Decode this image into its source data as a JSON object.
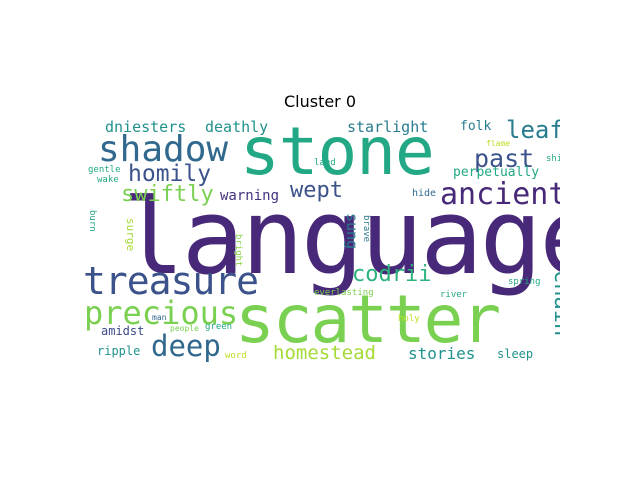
{
  "title": "Cluster 0",
  "words": [
    {
      "text": "language",
      "color": "#482878"
    },
    {
      "text": "stone",
      "color": "#22a884"
    },
    {
      "text": "scatter",
      "color": "#7ad151"
    },
    {
      "text": "treasure",
      "color": "#3b528b"
    },
    {
      "text": "shadow",
      "color": "#31688e"
    },
    {
      "text": "ancient",
      "color": "#482878"
    },
    {
      "text": "precious",
      "color": "#7ad151"
    },
    {
      "text": "past",
      "color": "#3b528b"
    },
    {
      "text": "deep",
      "color": "#31688e"
    },
    {
      "text": "homestead",
      "color": "#a5db36"
    },
    {
      "text": "wept",
      "color": "#3b528b"
    },
    {
      "text": "homily",
      "color": "#3b528b"
    },
    {
      "text": "swiftly",
      "color": "#7ad151"
    },
    {
      "text": "leaf",
      "color": "#287c8e"
    },
    {
      "text": "codrii",
      "color": "#2db27d"
    },
    {
      "text": "chain",
      "color": "#21918c"
    },
    {
      "text": "stories",
      "color": "#21918c"
    },
    {
      "text": "dniesters",
      "color": "#21918c"
    },
    {
      "text": "deathly",
      "color": "#21918c"
    },
    {
      "text": "starlight",
      "color": "#287c8e"
    },
    {
      "text": "sung",
      "color": "#287c8e"
    },
    {
      "text": "warning",
      "color": "#46327e"
    },
    {
      "text": "folk",
      "color": "#287c8e"
    },
    {
      "text": "perpetually",
      "color": "#22a884"
    },
    {
      "text": "sleep",
      "color": "#21918c"
    },
    {
      "text": "amidst",
      "color": "#3e4a89"
    },
    {
      "text": "ripple",
      "color": "#21918c"
    },
    {
      "text": "hide",
      "color": "#31688e"
    },
    {
      "text": "surge",
      "color": "#a5db36"
    },
    {
      "text": "brave",
      "color": "#2a788e"
    },
    {
      "text": "bright",
      "color": "#86d549"
    },
    {
      "text": "burn",
      "color": "#22a884"
    },
    {
      "text": "shin",
      "color": "#22a884"
    },
    {
      "text": "gentle",
      "color": "#22a884"
    },
    {
      "text": "wake",
      "color": "#22a884"
    },
    {
      "text": "land",
      "color": "#22a884"
    },
    {
      "text": "everlasting",
      "color": "#7ad151"
    },
    {
      "text": "river",
      "color": "#22a884"
    },
    {
      "text": "spring",
      "color": "#22a884"
    },
    {
      "text": "man",
      "color": "#31688e"
    },
    {
      "text": "people",
      "color": "#7ad151"
    },
    {
      "text": "green",
      "color": "#22a884"
    },
    {
      "text": "holy",
      "color": "#bddf26"
    },
    {
      "text": "word",
      "color": "#bddf26"
    },
    {
      "text": "flame",
      "color": "#bddf26"
    }
  ]
}
